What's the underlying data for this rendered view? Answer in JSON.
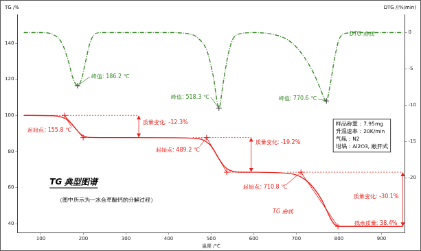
{
  "chart_data": {
    "type": "line",
    "title": "TG 典型图谱",
    "subtitle": "（图中所示为一水合草酸钙的分解过程）",
    "x_label": "温度 /°C",
    "y_label": "TG /%",
    "y2_label": "DTG /(%/min)",
    "xlim": [
      45,
      955
    ],
    "xticks": [
      100,
      200,
      300,
      400,
      500,
      600,
      700,
      800,
      900
    ],
    "ylim": [
      35,
      156
    ],
    "yticks": [
      40,
      60,
      80,
      100,
      120,
      140
    ],
    "y2lim": [
      -27.5,
      2.5
    ],
    "y2ticks": [
      -20,
      -15,
      -10,
      -5,
      0
    ],
    "grid": false,
    "series": [
      {
        "name": "TG 曲线",
        "color": "#e8231e",
        "line_style": "solid",
        "x": [
          60,
          130,
          150,
          165,
          175,
          186,
          195,
          205,
          215,
          300,
          400,
          460,
          480,
          500,
          518,
          530,
          540,
          550,
          560,
          600,
          650,
          700,
          720,
          740,
          760,
          770,
          780,
          790,
          800,
          820,
          950
        ],
        "values": [
          100,
          99.8,
          99,
          97,
          94.5,
          91.5,
          89.3,
          88.2,
          87.8,
          87.7,
          87.6,
          87.3,
          86.5,
          83,
          76,
          72,
          70,
          69,
          68.6,
          68.5,
          68.3,
          67,
          64.5,
          60,
          53,
          48,
          43,
          39.5,
          38.6,
          38.4,
          38.4
        ]
      },
      {
        "name": "DTG 曲线",
        "color": "#3a8a2a",
        "line_style": "dashdot",
        "axis": "y2",
        "x": [
          60,
          100,
          130,
          150,
          165,
          175,
          186.2,
          195,
          205,
          215,
          225,
          240,
          300,
          400,
          450,
          470,
          490,
          505,
          518.3,
          528,
          540,
          550,
          565,
          600,
          650,
          680,
          700,
          720,
          740,
          755,
          770.6,
          780,
          790,
          800,
          815,
          850,
          950
        ],
        "values": [
          0,
          0,
          -0.3,
          -1.5,
          -4,
          -6.2,
          -7.3,
          -6.5,
          -4,
          -1.5,
          -0.3,
          0,
          0,
          0,
          -0.2,
          -0.8,
          -2.5,
          -6,
          -10.4,
          -7,
          -3,
          -1,
          -0.2,
          0,
          -0.3,
          -1,
          -2,
          -3.5,
          -5.5,
          -7.5,
          -9.4,
          -7,
          -3.5,
          -1,
          -0.1,
          0,
          0
        ]
      }
    ],
    "peaks": [
      {
        "label": "峰值: 186.2 ℃",
        "x": 186.2,
        "y": -7.3
      },
      {
        "label": "峰值: 518.3 ℃",
        "x": 518.3,
        "y": -10.4
      },
      {
        "label": "峰值: 770.6 ℃",
        "x": 770.6,
        "y": -9.4
      }
    ],
    "onsets": [
      {
        "label": "起始点: 155.8 ℃",
        "x": 155.8,
        "y": 100,
        "tangent": [
          [
            155.8,
            100
          ],
          [
            199.5,
            87.7
          ]
        ]
      },
      {
        "label": "起始点: 489.2 ℃",
        "x": 489.2,
        "y": 87.7,
        "tangent": [
          [
            489.2,
            87.7
          ],
          [
            536.5,
            68.5
          ]
        ]
      },
      {
        "label": "起始点: 710.8 ℃",
        "x": 710.8,
        "y": 68.5,
        "tangent": [
          [
            710.8,
            68.5
          ],
          [
            797.8,
            38.4
          ]
        ]
      }
    ],
    "mass_changes": [
      {
        "label": "质量变化: -12.3%",
        "x": 330,
        "from": 100,
        "to": 87.7
      },
      {
        "label": "质量变化: -19.2%",
        "x": 594,
        "from": 87.7,
        "to": 68.5
      },
      {
        "label": "质量变化: -30.1%",
        "x": 950,
        "from": 68.5,
        "to": 38.4
      }
    ],
    "residual": {
      "label": "残余质量: 38.4%",
      "x": 950,
      "y": 38.4
    },
    "info_box": [
      "样品称重：7.95mg",
      "升温速率：20K/min",
      "气氛：N2",
      "坩埚：Al2O3, 敞开式"
    ]
  }
}
